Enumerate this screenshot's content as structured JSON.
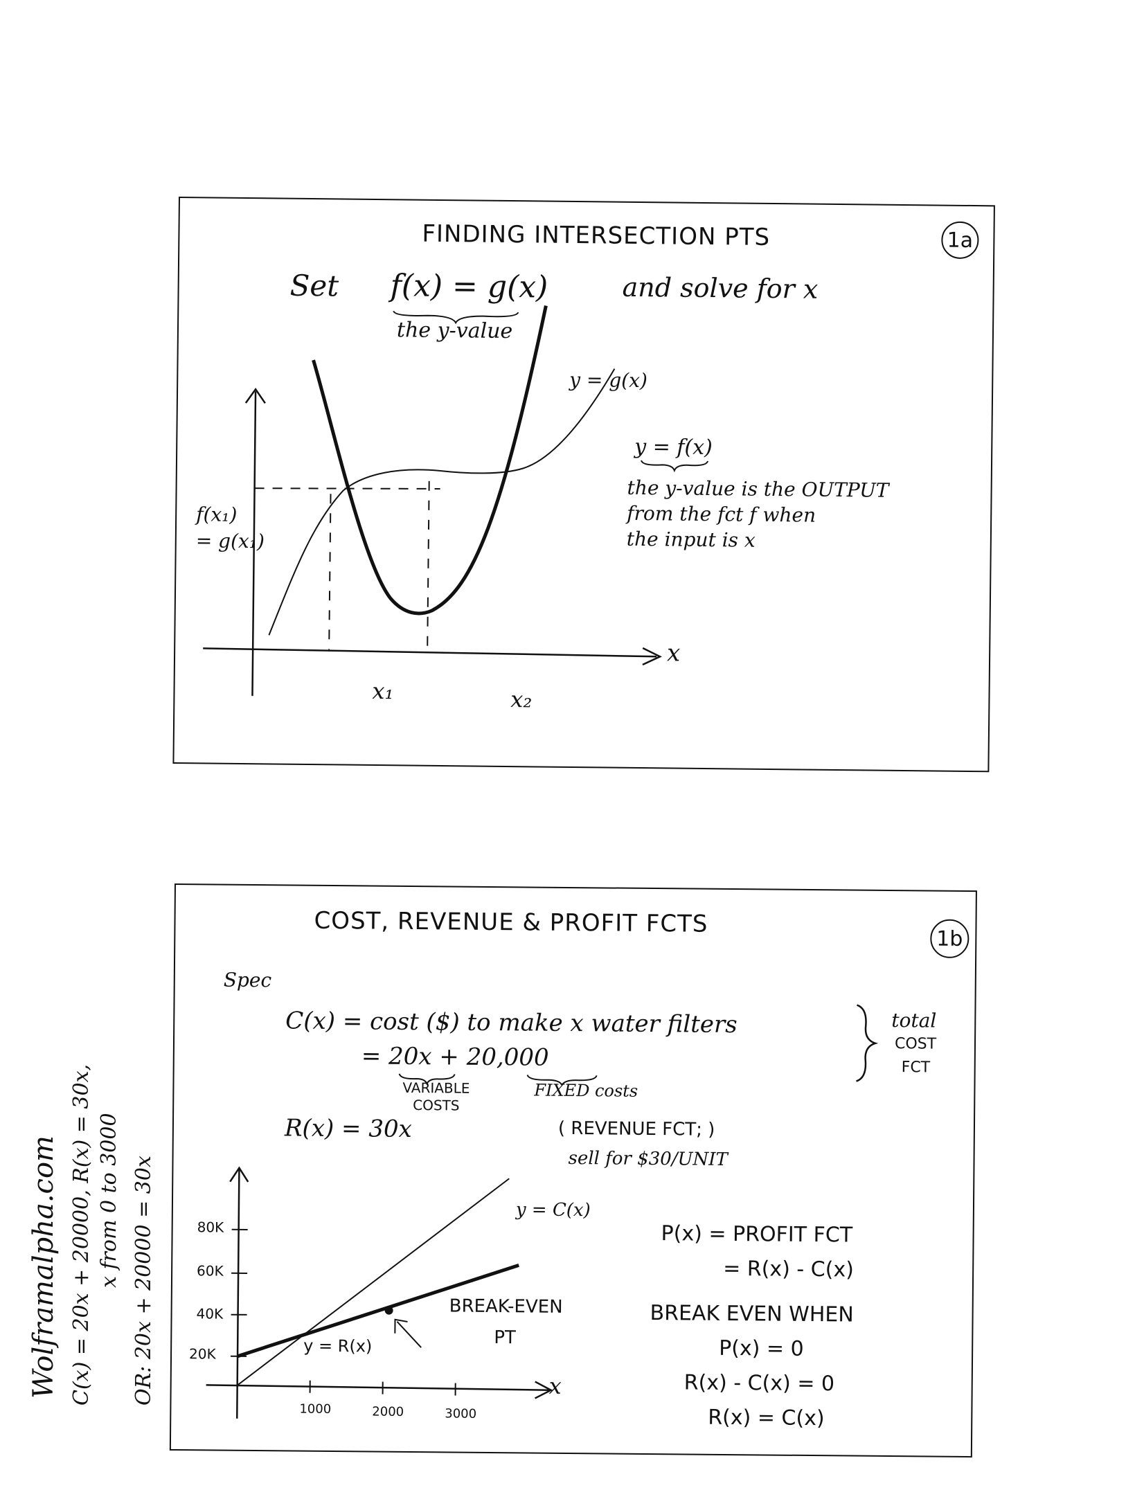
{
  "panel_a": {
    "title": "FINDING  INTERSECTION  PTS",
    "badge": "1a",
    "set_word": "Set",
    "equation": "f(x) = g(x)",
    "solve_text": "and solve for  x",
    "brace_note": "the y-value",
    "label_g": "y = g(x)",
    "label_f": "y = f(x)",
    "note_line1": "the y-value is the OUTPUT",
    "note_line2": "from the fct f when",
    "note_line3": "the input is x",
    "ylabel_line1": "f(x₁)",
    "ylabel_line2": "= g(x₁)",
    "x1": "x₁",
    "x2": "x₂",
    "x_axis": "x"
  },
  "panel_b": {
    "title": "COST, REVENUE & PROFIT  FCTS",
    "badge": "1b",
    "spec": "Spec",
    "cost_def": "C(x) =   cost ($) to make x water filters",
    "cost_eq": "=   20x  +  20,000",
    "variable": "VARIABLE",
    "costs": "COSTS",
    "fixed": "FIXED costs",
    "total1": "total",
    "total2": "COST",
    "total3": "FCT",
    "rev_def": "R(x) =   30x",
    "rev_note1": "( REVENUE  FCT; )",
    "rev_note2": "sell for $30/UNIT",
    "profit1": "P(x) =  PROFIT FCT",
    "profit2": "= R(x) - C(x)",
    "break1": "BREAK EVEN WHEN",
    "break2": "P(x) = 0",
    "break3": "R(x) - C(x) = 0",
    "break4": "R(x) = C(x)",
    "label_c": "y = C(x)",
    "label_r": "y = R(x)",
    "be_line1": "BREAK-EVEN",
    "be_line2": "PT",
    "y_ticks": [
      "80K",
      "60K",
      "40K",
      "20K"
    ],
    "x_ticks": [
      "1000",
      "2000",
      "3000"
    ],
    "x_axis": "x"
  },
  "side_note": {
    "line1": "Wolframalpha.com",
    "line2": "C(x) = 20x + 20000,  R(x) = 30x,",
    "line3": "x from 0 to 3000",
    "line4": "OR:   20x + 20000 = 30x"
  }
}
